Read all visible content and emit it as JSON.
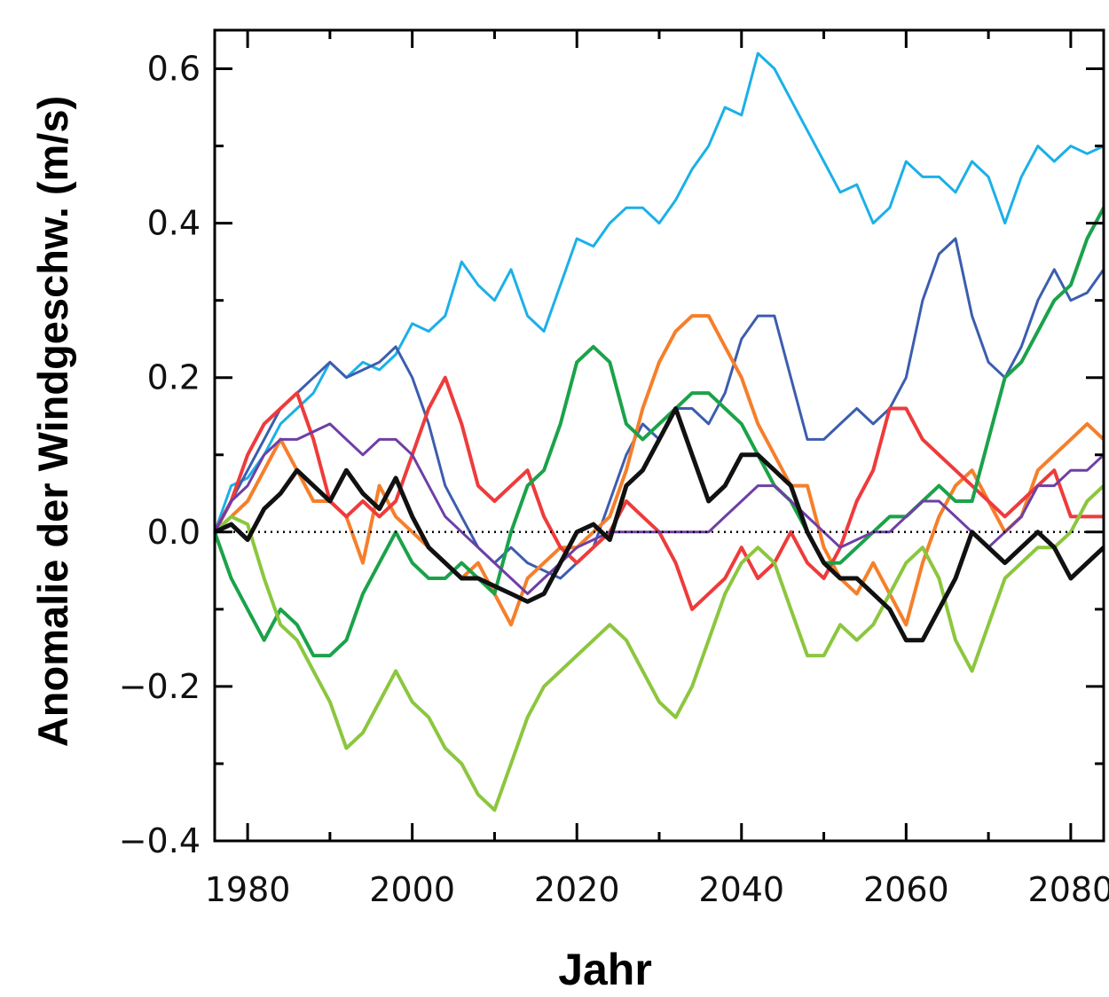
{
  "chart_data": {
    "type": "line",
    "title": "",
    "xlabel": "Jahr",
    "ylabel": "Anomalie der Windgeschw. (m/s)",
    "xlim": [
      1976,
      2084
    ],
    "ylim": [
      -0.4,
      0.65
    ],
    "x_ticks": [
      1980,
      2000,
      2020,
      2040,
      2060,
      2080
    ],
    "x_tick_labels": [
      "1980",
      "2000",
      "2020",
      "2040",
      "2060",
      "2080"
    ],
    "y_ticks": [
      -0.4,
      -0.2,
      0.0,
      0.2,
      0.4,
      0.6
    ],
    "y_tick_labels": [
      "−0.4",
      "−0.2",
      "0.0",
      "0.2",
      "0.4",
      "0.6"
    ],
    "reference_line": {
      "y": 0.0,
      "style": "dotted"
    },
    "grid": false,
    "legend": "none",
    "series": [
      {
        "color": "#1BB0E8",
        "width": 3,
        "x": [
          1976,
          1978,
          1980,
          1982,
          1984,
          1986,
          1988,
          1990,
          1992,
          1994,
          1996,
          1998,
          2000,
          2002,
          2004,
          2006,
          2008,
          2010,
          2012,
          2014,
          2016,
          2018,
          2020,
          2022,
          2024,
          2026,
          2028,
          2030,
          2032,
          2034,
          2036,
          2038,
          2040,
          2042,
          2044,
          2046,
          2048,
          2050,
          2052,
          2054,
          2056,
          2058,
          2060,
          2062,
          2064,
          2066,
          2068,
          2070,
          2072,
          2074,
          2076,
          2078,
          2080,
          2082,
          2084
        ],
        "y": [
          0.0,
          0.06,
          0.07,
          0.1,
          0.14,
          0.16,
          0.18,
          0.22,
          0.2,
          0.22,
          0.21,
          0.23,
          0.27,
          0.26,
          0.28,
          0.35,
          0.32,
          0.3,
          0.34,
          0.28,
          0.26,
          0.32,
          0.38,
          0.37,
          0.4,
          0.42,
          0.42,
          0.4,
          0.43,
          0.47,
          0.5,
          0.55,
          0.54,
          0.62,
          0.6,
          0.56,
          0.52,
          0.48,
          0.44,
          0.45,
          0.4,
          0.42,
          0.48,
          0.46,
          0.46,
          0.44,
          0.48,
          0.46,
          0.4,
          0.46,
          0.5,
          0.48,
          0.5,
          0.49,
          0.5
        ]
      },
      {
        "color": "#3C5DAE",
        "width": 3,
        "x": [
          1976,
          1978,
          1980,
          1982,
          1984,
          1986,
          1988,
          1990,
          1992,
          1994,
          1996,
          1998,
          2000,
          2002,
          2004,
          2006,
          2008,
          2010,
          2012,
          2014,
          2016,
          2018,
          2020,
          2022,
          2024,
          2026,
          2028,
          2030,
          2032,
          2034,
          2036,
          2038,
          2040,
          2042,
          2044,
          2046,
          2048,
          2050,
          2052,
          2054,
          2056,
          2058,
          2060,
          2062,
          2064,
          2066,
          2068,
          2070,
          2072,
          2074,
          2076,
          2078,
          2080,
          2082,
          2084
        ],
        "y": [
          0.0,
          0.04,
          0.08,
          0.12,
          0.16,
          0.18,
          0.2,
          0.22,
          0.2,
          0.21,
          0.22,
          0.24,
          0.2,
          0.14,
          0.06,
          0.02,
          -0.02,
          -0.04,
          -0.02,
          -0.04,
          -0.05,
          -0.06,
          -0.04,
          -0.02,
          0.04,
          0.1,
          0.14,
          0.12,
          0.16,
          0.16,
          0.14,
          0.18,
          0.25,
          0.28,
          0.28,
          0.2,
          0.12,
          0.12,
          0.14,
          0.16,
          0.14,
          0.16,
          0.2,
          0.3,
          0.36,
          0.38,
          0.28,
          0.22,
          0.2,
          0.24,
          0.3,
          0.34,
          0.3,
          0.31,
          0.34
        ]
      },
      {
        "color": "#F57F2B",
        "width": 4,
        "x": [
          1976,
          1978,
          1980,
          1982,
          1984,
          1986,
          1988,
          1990,
          1992,
          1994,
          1996,
          1998,
          2000,
          2002,
          2004,
          2006,
          2008,
          2010,
          2012,
          2014,
          2016,
          2018,
          2020,
          2022,
          2024,
          2026,
          2028,
          2030,
          2032,
          2034,
          2036,
          2038,
          2040,
          2042,
          2044,
          2046,
          2048,
          2050,
          2052,
          2054,
          2056,
          2058,
          2060,
          2062,
          2064,
          2066,
          2068,
          2070,
          2072,
          2074,
          2076,
          2078,
          2080,
          2082,
          2084
        ],
        "y": [
          0.0,
          0.02,
          0.04,
          0.08,
          0.12,
          0.08,
          0.04,
          0.04,
          0.02,
          -0.04,
          0.06,
          0.02,
          0.0,
          -0.02,
          -0.04,
          -0.06,
          -0.04,
          -0.08,
          -0.12,
          -0.06,
          -0.04,
          -0.02,
          -0.02,
          0.0,
          0.02,
          0.08,
          0.16,
          0.22,
          0.26,
          0.28,
          0.28,
          0.24,
          0.2,
          0.14,
          0.1,
          0.06,
          0.06,
          -0.02,
          -0.06,
          -0.08,
          -0.04,
          -0.08,
          -0.12,
          -0.04,
          0.02,
          0.06,
          0.08,
          0.04,
          0.0,
          0.02,
          0.08,
          0.1,
          0.12,
          0.14,
          0.12
        ]
      },
      {
        "color": "#EE3B3B",
        "width": 4,
        "x": [
          1976,
          1978,
          1980,
          1982,
          1984,
          1986,
          1988,
          1990,
          1992,
          1994,
          1996,
          1998,
          2000,
          2002,
          2004,
          2006,
          2008,
          2010,
          2012,
          2014,
          2016,
          2018,
          2020,
          2022,
          2024,
          2026,
          2028,
          2030,
          2032,
          2034,
          2036,
          2038,
          2040,
          2042,
          2044,
          2046,
          2048,
          2050,
          2052,
          2054,
          2056,
          2058,
          2060,
          2062,
          2064,
          2066,
          2068,
          2070,
          2072,
          2074,
          2076,
          2078,
          2080,
          2082,
          2084
        ],
        "y": [
          0.0,
          0.04,
          0.1,
          0.14,
          0.16,
          0.18,
          0.12,
          0.04,
          0.02,
          0.04,
          0.02,
          0.04,
          0.1,
          0.16,
          0.2,
          0.14,
          0.06,
          0.04,
          0.06,
          0.08,
          0.02,
          -0.02,
          -0.04,
          -0.02,
          0.0,
          0.04,
          0.02,
          0.0,
          -0.04,
          -0.1,
          -0.08,
          -0.06,
          -0.02,
          -0.06,
          -0.04,
          0.0,
          -0.04,
          -0.06,
          -0.02,
          0.04,
          0.08,
          0.16,
          0.16,
          0.12,
          0.1,
          0.08,
          0.06,
          0.04,
          0.02,
          0.04,
          0.06,
          0.08,
          0.02,
          0.02,
          0.02
        ]
      },
      {
        "color": "#1BA24A",
        "width": 4,
        "x": [
          1976,
          1978,
          1980,
          1982,
          1984,
          1986,
          1988,
          1990,
          1992,
          1994,
          1996,
          1998,
          2000,
          2002,
          2004,
          2006,
          2008,
          2010,
          2012,
          2014,
          2016,
          2018,
          2020,
          2022,
          2024,
          2026,
          2028,
          2030,
          2032,
          2034,
          2036,
          2038,
          2040,
          2042,
          2044,
          2046,
          2048,
          2050,
          2052,
          2054,
          2056,
          2058,
          2060,
          2062,
          2064,
          2066,
          2068,
          2070,
          2072,
          2074,
          2076,
          2078,
          2080,
          2082,
          2084
        ],
        "y": [
          0.0,
          -0.06,
          -0.1,
          -0.14,
          -0.1,
          -0.12,
          -0.16,
          -0.16,
          -0.14,
          -0.08,
          -0.04,
          0.0,
          -0.04,
          -0.06,
          -0.06,
          -0.04,
          -0.06,
          -0.08,
          0.0,
          0.06,
          0.08,
          0.14,
          0.22,
          0.24,
          0.22,
          0.14,
          0.12,
          0.14,
          0.16,
          0.18,
          0.18,
          0.16,
          0.14,
          0.1,
          0.06,
          0.04,
          0.0,
          -0.04,
          -0.04,
          -0.02,
          0.0,
          0.02,
          0.02,
          0.04,
          0.06,
          0.04,
          0.04,
          0.12,
          0.2,
          0.22,
          0.26,
          0.3,
          0.32,
          0.38,
          0.42
        ]
      },
      {
        "color": "#8CC63F",
        "width": 4,
        "x": [
          1976,
          1978,
          1980,
          1982,
          1984,
          1986,
          1988,
          1990,
          1992,
          1994,
          1996,
          1998,
          2000,
          2002,
          2004,
          2006,
          2008,
          2010,
          2012,
          2014,
          2016,
          2018,
          2020,
          2022,
          2024,
          2026,
          2028,
          2030,
          2032,
          2034,
          2036,
          2038,
          2040,
          2042,
          2044,
          2046,
          2048,
          2050,
          2052,
          2054,
          2056,
          2058,
          2060,
          2062,
          2064,
          2066,
          2068,
          2070,
          2072,
          2074,
          2076,
          2078,
          2080,
          2082,
          2084
        ],
        "y": [
          0.0,
          0.02,
          0.01,
          -0.06,
          -0.12,
          -0.14,
          -0.18,
          -0.22,
          -0.28,
          -0.26,
          -0.22,
          -0.18,
          -0.22,
          -0.24,
          -0.28,
          -0.3,
          -0.34,
          -0.36,
          -0.3,
          -0.24,
          -0.2,
          -0.18,
          -0.16,
          -0.14,
          -0.12,
          -0.14,
          -0.18,
          -0.22,
          -0.24,
          -0.2,
          -0.14,
          -0.08,
          -0.04,
          -0.02,
          -0.04,
          -0.1,
          -0.16,
          -0.16,
          -0.12,
          -0.14,
          -0.12,
          -0.08,
          -0.04,
          -0.02,
          -0.06,
          -0.14,
          -0.18,
          -0.12,
          -0.06,
          -0.04,
          -0.02,
          -0.02,
          0.0,
          0.04,
          0.06
        ]
      },
      {
        "color": "#6E3FA5",
        "width": 3,
        "x": [
          1976,
          1978,
          1980,
          1982,
          1984,
          1986,
          1988,
          1990,
          1992,
          1994,
          1996,
          1998,
          2000,
          2002,
          2004,
          2006,
          2008,
          2010,
          2012,
          2014,
          2016,
          2018,
          2020,
          2022,
          2024,
          2026,
          2028,
          2030,
          2032,
          2034,
          2036,
          2038,
          2040,
          2042,
          2044,
          2046,
          2048,
          2050,
          2052,
          2054,
          2056,
          2058,
          2060,
          2062,
          2064,
          2066,
          2068,
          2070,
          2072,
          2074,
          2076,
          2078,
          2080,
          2082,
          2084
        ],
        "y": [
          0.0,
          0.04,
          0.06,
          0.1,
          0.12,
          0.12,
          0.13,
          0.14,
          0.12,
          0.1,
          0.12,
          0.12,
          0.1,
          0.06,
          0.02,
          0.0,
          -0.02,
          -0.04,
          -0.06,
          -0.08,
          -0.06,
          -0.04,
          -0.02,
          -0.01,
          0.0,
          0.0,
          0.0,
          0.0,
          0.0,
          0.0,
          0.0,
          0.02,
          0.04,
          0.06,
          0.06,
          0.04,
          0.02,
          0.0,
          -0.02,
          -0.01,
          0.0,
          0.0,
          0.02,
          0.04,
          0.04,
          0.02,
          0.0,
          -0.02,
          0.0,
          0.02,
          0.06,
          0.06,
          0.08,
          0.08,
          0.1
        ]
      },
      {
        "color": "#111111",
        "width": 5,
        "x": [
          1976,
          1978,
          1980,
          1982,
          1984,
          1986,
          1988,
          1990,
          1992,
          1994,
          1996,
          1998,
          2000,
          2002,
          2004,
          2006,
          2008,
          2010,
          2012,
          2014,
          2016,
          2018,
          2020,
          2022,
          2024,
          2026,
          2028,
          2030,
          2032,
          2034,
          2036,
          2038,
          2040,
          2042,
          2044,
          2046,
          2048,
          2050,
          2052,
          2054,
          2056,
          2058,
          2060,
          2062,
          2064,
          2066,
          2068,
          2070,
          2072,
          2074,
          2076,
          2078,
          2080,
          2082,
          2084
        ],
        "y": [
          0.0,
          0.01,
          -0.01,
          0.03,
          0.05,
          0.08,
          0.06,
          0.04,
          0.08,
          0.05,
          0.03,
          0.07,
          0.02,
          -0.02,
          -0.04,
          -0.06,
          -0.06,
          -0.07,
          -0.08,
          -0.09,
          -0.08,
          -0.04,
          0.0,
          0.01,
          -0.01,
          0.06,
          0.08,
          0.12,
          0.16,
          0.1,
          0.04,
          0.06,
          0.1,
          0.1,
          0.08,
          0.06,
          0.0,
          -0.04,
          -0.06,
          -0.06,
          -0.08,
          -0.1,
          -0.14,
          -0.14,
          -0.1,
          -0.06,
          0.0,
          -0.02,
          -0.04,
          -0.02,
          0.0,
          -0.02,
          -0.06,
          -0.04,
          -0.02
        ]
      }
    ]
  }
}
